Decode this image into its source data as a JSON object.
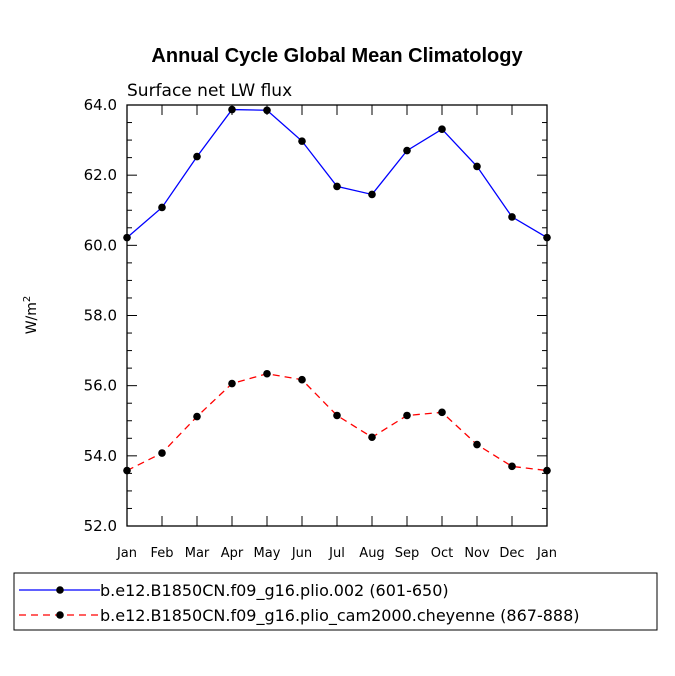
{
  "chart_data": {
    "type": "line",
    "title": "Annual Cycle Global Mean Climatology",
    "subtitle": "Surface net LW flux",
    "ylabel": "W/m",
    "ylabel_superscript": "2",
    "xlabel": "",
    "ylim": [
      52.0,
      64.0
    ],
    "yticks": [
      "52.0",
      "54.0",
      "56.0",
      "58.0",
      "60.0",
      "62.0",
      "64.0"
    ],
    "categories": [
      "Jan",
      "Feb",
      "Mar",
      "Apr",
      "May",
      "Jun",
      "Jul",
      "Aug",
      "Sep",
      "Oct",
      "Nov",
      "Dec",
      "Jan"
    ],
    "series": [
      {
        "name": "b.e12.B1850CN.f09_g16.plio.002 (601-650)",
        "color": "#0000ff",
        "dash": "solid",
        "values": [
          60.22,
          61.08,
          62.53,
          63.87,
          63.85,
          62.97,
          61.68,
          61.45,
          62.7,
          63.31,
          62.25,
          60.81,
          60.22
        ]
      },
      {
        "name": "b.e12.B1850CN.f09_g16.plio_cam2000.cheyenne (867-888)",
        "color": "#ff0000",
        "dash": "dashed",
        "values": [
          53.58,
          54.08,
          55.12,
          56.06,
          56.34,
          56.17,
          55.15,
          54.53,
          55.15,
          55.24,
          54.32,
          53.7,
          53.58
        ]
      }
    ],
    "marker_color": "#000000",
    "legend_position": "bottom"
  }
}
